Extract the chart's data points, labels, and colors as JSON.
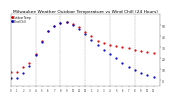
{
  "title": "Milwaukee Weather Outdoor Temperature vs Wind Chill (24 Hours)",
  "title_fontsize": 3.2,
  "background_color": "#ffffff",
  "grid_color": "#999999",
  "temp_color": "#dd0000",
  "windchill_color": "#0000cc",
  "n_points": 96,
  "temp_values": [
    8,
    7,
    6,
    7,
    8,
    9,
    10,
    11,
    12,
    13,
    14,
    15,
    16,
    17,
    19,
    21,
    24,
    27,
    30,
    33,
    36,
    39,
    41,
    43,
    45,
    46,
    47,
    48,
    49,
    50,
    51,
    51,
    52,
    52,
    53,
    53,
    53,
    53,
    52,
    52,
    51,
    51,
    50,
    49,
    48,
    47,
    46,
    45,
    44,
    43,
    42,
    41,
    40,
    39,
    38,
    37,
    36,
    36,
    35,
    34,
    34,
    33,
    33,
    32,
    32,
    32,
    31,
    31,
    31,
    30,
    30,
    30,
    30,
    29,
    29,
    29,
    29,
    28,
    28,
    28,
    28,
    28,
    27,
    27,
    27,
    27,
    26,
    26,
    26,
    26,
    25,
    25,
    25,
    25,
    24,
    24
  ],
  "windchill_values": [
    2,
    1,
    0,
    1,
    2,
    3,
    4,
    5,
    7,
    8,
    9,
    11,
    13,
    15,
    17,
    20,
    23,
    26,
    29,
    32,
    35,
    38,
    40,
    43,
    45,
    46,
    47,
    48,
    49,
    50,
    51,
    51,
    52,
    52,
    53,
    53,
    53,
    53,
    52,
    51,
    50,
    50,
    49,
    48,
    47,
    46,
    45,
    44,
    42,
    41,
    40,
    39,
    37,
    36,
    35,
    33,
    32,
    31,
    30,
    29,
    28,
    27,
    26,
    25,
    24,
    23,
    22,
    21,
    20,
    19,
    18,
    17,
    16,
    15,
    14,
    13,
    12,
    11,
    11,
    10,
    9,
    9,
    8,
    8,
    7,
    7,
    6,
    6,
    5,
    5,
    4,
    4,
    3,
    3,
    3,
    2
  ],
  "ylim": [
    -5,
    60
  ],
  "xlim": [
    0,
    96
  ],
  "ytick_vals": [
    0,
    10,
    20,
    30,
    40,
    50
  ],
  "ytick_labels": [
    "0",
    "10",
    "20",
    "30",
    "40",
    "50"
  ],
  "grid_positions": [
    0,
    16,
    32,
    48,
    64,
    80,
    96
  ],
  "xtick_positions": [
    0,
    4,
    8,
    12,
    16,
    20,
    24,
    28,
    32,
    36,
    40,
    44,
    48,
    52,
    56,
    60,
    64,
    68,
    72,
    76,
    80,
    84,
    88,
    92
  ],
  "xtick_labels": [
    "0",
    "1",
    "2",
    "3",
    "4",
    "5",
    "6",
    "7",
    "8",
    "9",
    "10",
    "11",
    "12",
    "1",
    "2",
    "3",
    "4",
    "5",
    "6",
    "7",
    "8",
    "9",
    "10",
    "11"
  ],
  "legend_temp": "Outdoor Temp",
  "legend_wc": "Wind Chill"
}
